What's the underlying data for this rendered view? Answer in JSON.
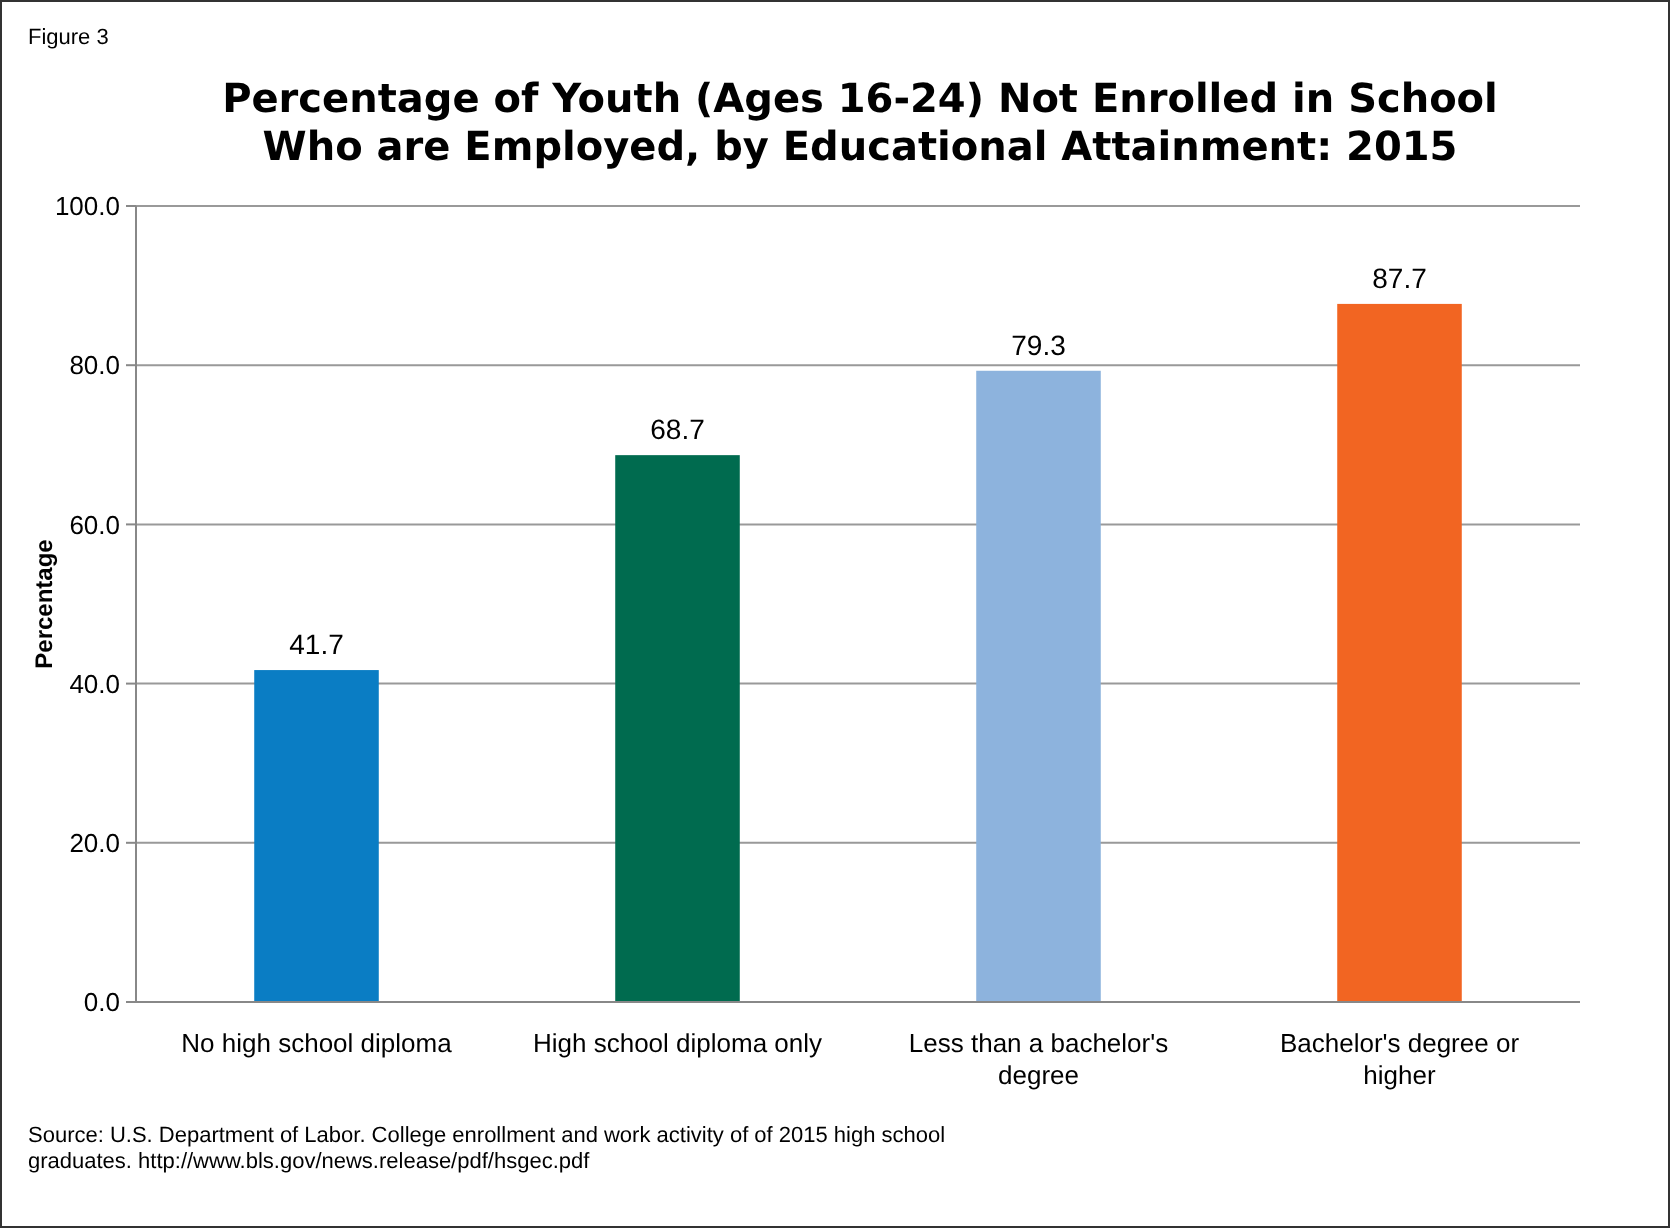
{
  "chart_data": {
    "type": "bar",
    "title": "Percentage of Youth (Ages 16-24) Not Enrolled in School\nWho are Employed, by  Educational Attainment: 2015",
    "ylabel": "Percentage",
    "categories": [
      "No high school diploma",
      "High school diploma only",
      "Less than a bachelor's degree",
      "Bachelor's degree or higher"
    ],
    "values": [
      41.7,
      68.7,
      79.3,
      87.7
    ],
    "colors": [
      "#0a7dc4",
      "#006b4f",
      "#8db3dd",
      "#f26522"
    ],
    "ylim": [
      0,
      100
    ],
    "yticks": [
      {
        "value": 0,
        "label": "0.0"
      },
      {
        "value": 20,
        "label": "20.0"
      },
      {
        "value": 40,
        "label": "40.0"
      },
      {
        "value": 60,
        "label": "60.0"
      },
      {
        "value": 80,
        "label": "80.0"
      },
      {
        "value": 100,
        "label": "100.0"
      }
    ],
    "grid": "y",
    "data_labels": true,
    "annotations": [
      "Figure 3",
      "Source: U.S. Department of Labor. College enrollment and work activity of  of 2015 high school graduates.  http://www.bls.gov/news.release/pdf/hsgec.pdf"
    ]
  }
}
